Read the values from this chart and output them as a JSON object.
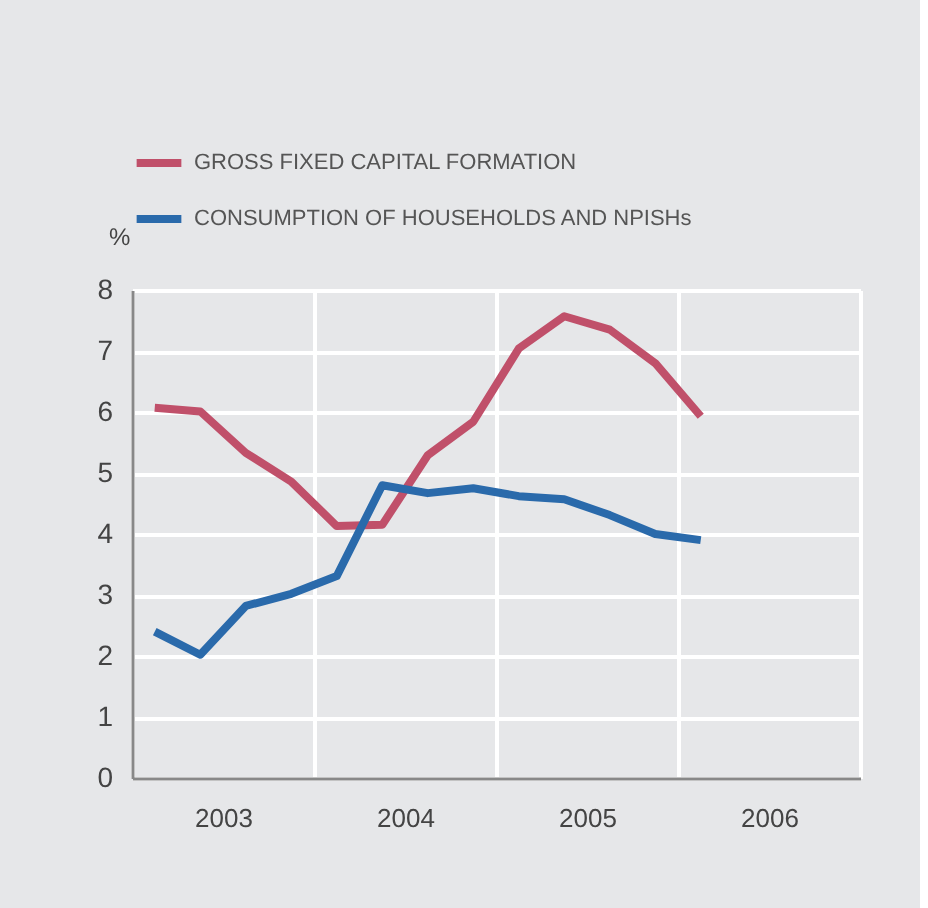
{
  "chart_data": {
    "type": "line",
    "x": [
      2003.125,
      2003.375,
      2003.625,
      2003.875,
      2004.125,
      2004.375,
      2004.625,
      2004.875,
      2005.125,
      2005.375,
      2005.625,
      2005.875,
      2006.125
    ],
    "series": [
      {
        "name": "GROSS FIXED CAPITAL FORMATION",
        "color": "#c0506a",
        "values": [
          6.07,
          6.01,
          5.33,
          4.86,
          4.13,
          4.15,
          5.29,
          5.84,
          7.04,
          7.57,
          7.35,
          6.8,
          5.93
        ]
      },
      {
        "name": "CONSUMPTION OF HOUSEHOLDS AND NPISHs",
        "color": "#2a6aab",
        "values": [
          2.4,
          2.02,
          2.82,
          3.02,
          3.31,
          4.8,
          4.67,
          4.75,
          4.62,
          4.57,
          4.31,
          4.0,
          3.9
        ]
      }
    ],
    "ylabel": "%",
    "xlim": [
      2003,
      2007
    ],
    "ylim": [
      0,
      8
    ],
    "xticks": [
      {
        "value": 2003,
        "label": null
      },
      {
        "value": 2003.5,
        "label": "2003"
      },
      {
        "value": 2004,
        "label": null
      },
      {
        "value": 2004.5,
        "label": "2004"
      },
      {
        "value": 2005,
        "label": null
      },
      {
        "value": 2005.5,
        "label": "2005"
      },
      {
        "value": 2006,
        "label": null
      },
      {
        "value": 2006.5,
        "label": "2006"
      },
      {
        "value": 2007,
        "label": null
      }
    ],
    "yticks": [
      0,
      1,
      2,
      3,
      4,
      5,
      6,
      7,
      8
    ],
    "grid": true,
    "legend": "top left",
    "marker": "none",
    "line_style": "solid"
  }
}
